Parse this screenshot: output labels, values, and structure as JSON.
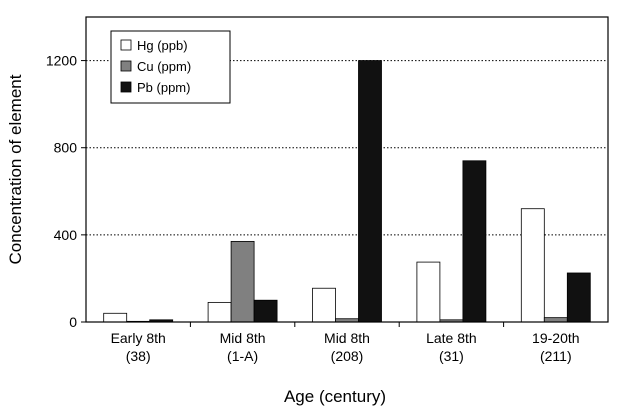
{
  "chart_data": {
    "type": "bar",
    "title": "",
    "xlabel": "Age (century)",
    "ylabel": "Concentration of element",
    "ylim": [
      0,
      1400
    ],
    "yticks": [
      0,
      400,
      800,
      1200
    ],
    "grid": "horizontal dotted at 400, 800, 1200",
    "legend_position": "top-left",
    "categories": [
      [
        "Early 8th",
        "(38)"
      ],
      [
        "Mid 8th",
        "(1-A)"
      ],
      [
        "Mid 8th",
        "(208)"
      ],
      [
        "Late 8th",
        "(31)"
      ],
      [
        "19-20th",
        "(211)"
      ]
    ],
    "series": [
      {
        "name": "Hg (ppb)",
        "color": "#ffffff",
        "values": [
          40,
          90,
          155,
          275,
          520
        ]
      },
      {
        "name": "Cu (ppm)",
        "color": "#808080",
        "values": [
          3,
          370,
          15,
          10,
          20
        ]
      },
      {
        "name": "Pb (ppm)",
        "color": "#111111",
        "values": [
          10,
          100,
          1200,
          740,
          225
        ]
      }
    ]
  }
}
